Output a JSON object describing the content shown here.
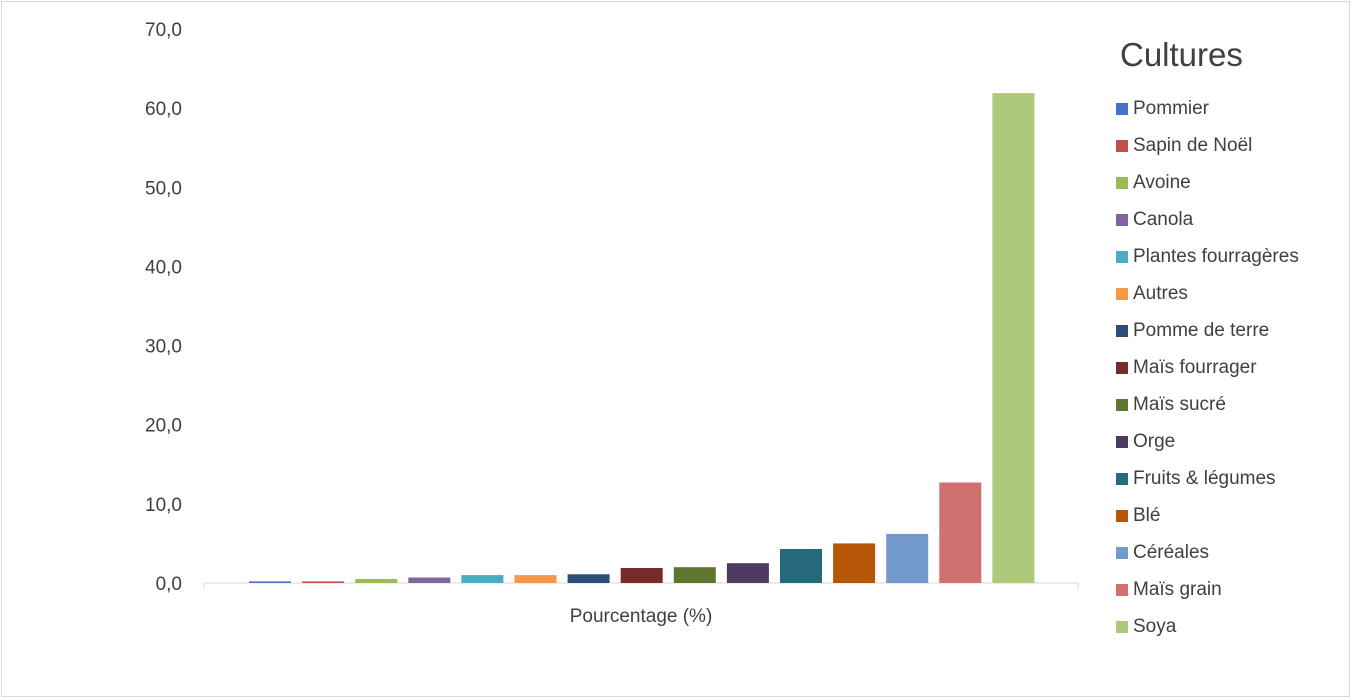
{
  "chart_data": {
    "type": "bar",
    "title": "",
    "xlabel": "",
    "ylabel": "",
    "categories": [
      "Pourcentage (%)"
    ],
    "ylim": [
      0,
      70
    ],
    "yticks": [
      "0,0",
      "10,0",
      "20,0",
      "30,0",
      "40,0",
      "50,0",
      "60,0",
      "70,0"
    ],
    "grid": false,
    "legend_title": "Cultures",
    "legend_position": "right",
    "series": [
      {
        "name": "Pommier",
        "values": [
          0.2
        ],
        "color": "#4472c4"
      },
      {
        "name": "Sapin de Noël",
        "values": [
          0.2
        ],
        "color": "#c0504d"
      },
      {
        "name": "Avoine",
        "values": [
          0.5
        ],
        "color": "#9bbb59"
      },
      {
        "name": "Canola",
        "values": [
          0.7
        ],
        "color": "#8064a2"
      },
      {
        "name": "Plantes fourragères",
        "values": [
          1.0
        ],
        "color": "#4bacc6"
      },
      {
        "name": "Autres",
        "values": [
          1.0
        ],
        "color": "#f79646"
      },
      {
        "name": "Pomme de terre",
        "values": [
          1.1
        ],
        "color": "#2c4d75"
      },
      {
        "name": "Maïs fourrager",
        "values": [
          1.9
        ],
        "color": "#772c2a"
      },
      {
        "name": "Maïs sucré",
        "values": [
          2.0
        ],
        "color": "#5f7530"
      },
      {
        "name": "Orge",
        "values": [
          2.5
        ],
        "color": "#4d3b62"
      },
      {
        "name": "Fruits & légumes",
        "values": [
          4.3
        ],
        "color": "#276a7c"
      },
      {
        "name": "Blé",
        "values": [
          5.0
        ],
        "color": "#b65708"
      },
      {
        "name": "Céréales",
        "values": [
          6.2
        ],
        "color": "#729aca"
      },
      {
        "name": "Maïs grain",
        "values": [
          12.7
        ],
        "color": "#d07170"
      },
      {
        "name": "Soya",
        "values": [
          61.9
        ],
        "color": "#afc97a"
      }
    ]
  }
}
